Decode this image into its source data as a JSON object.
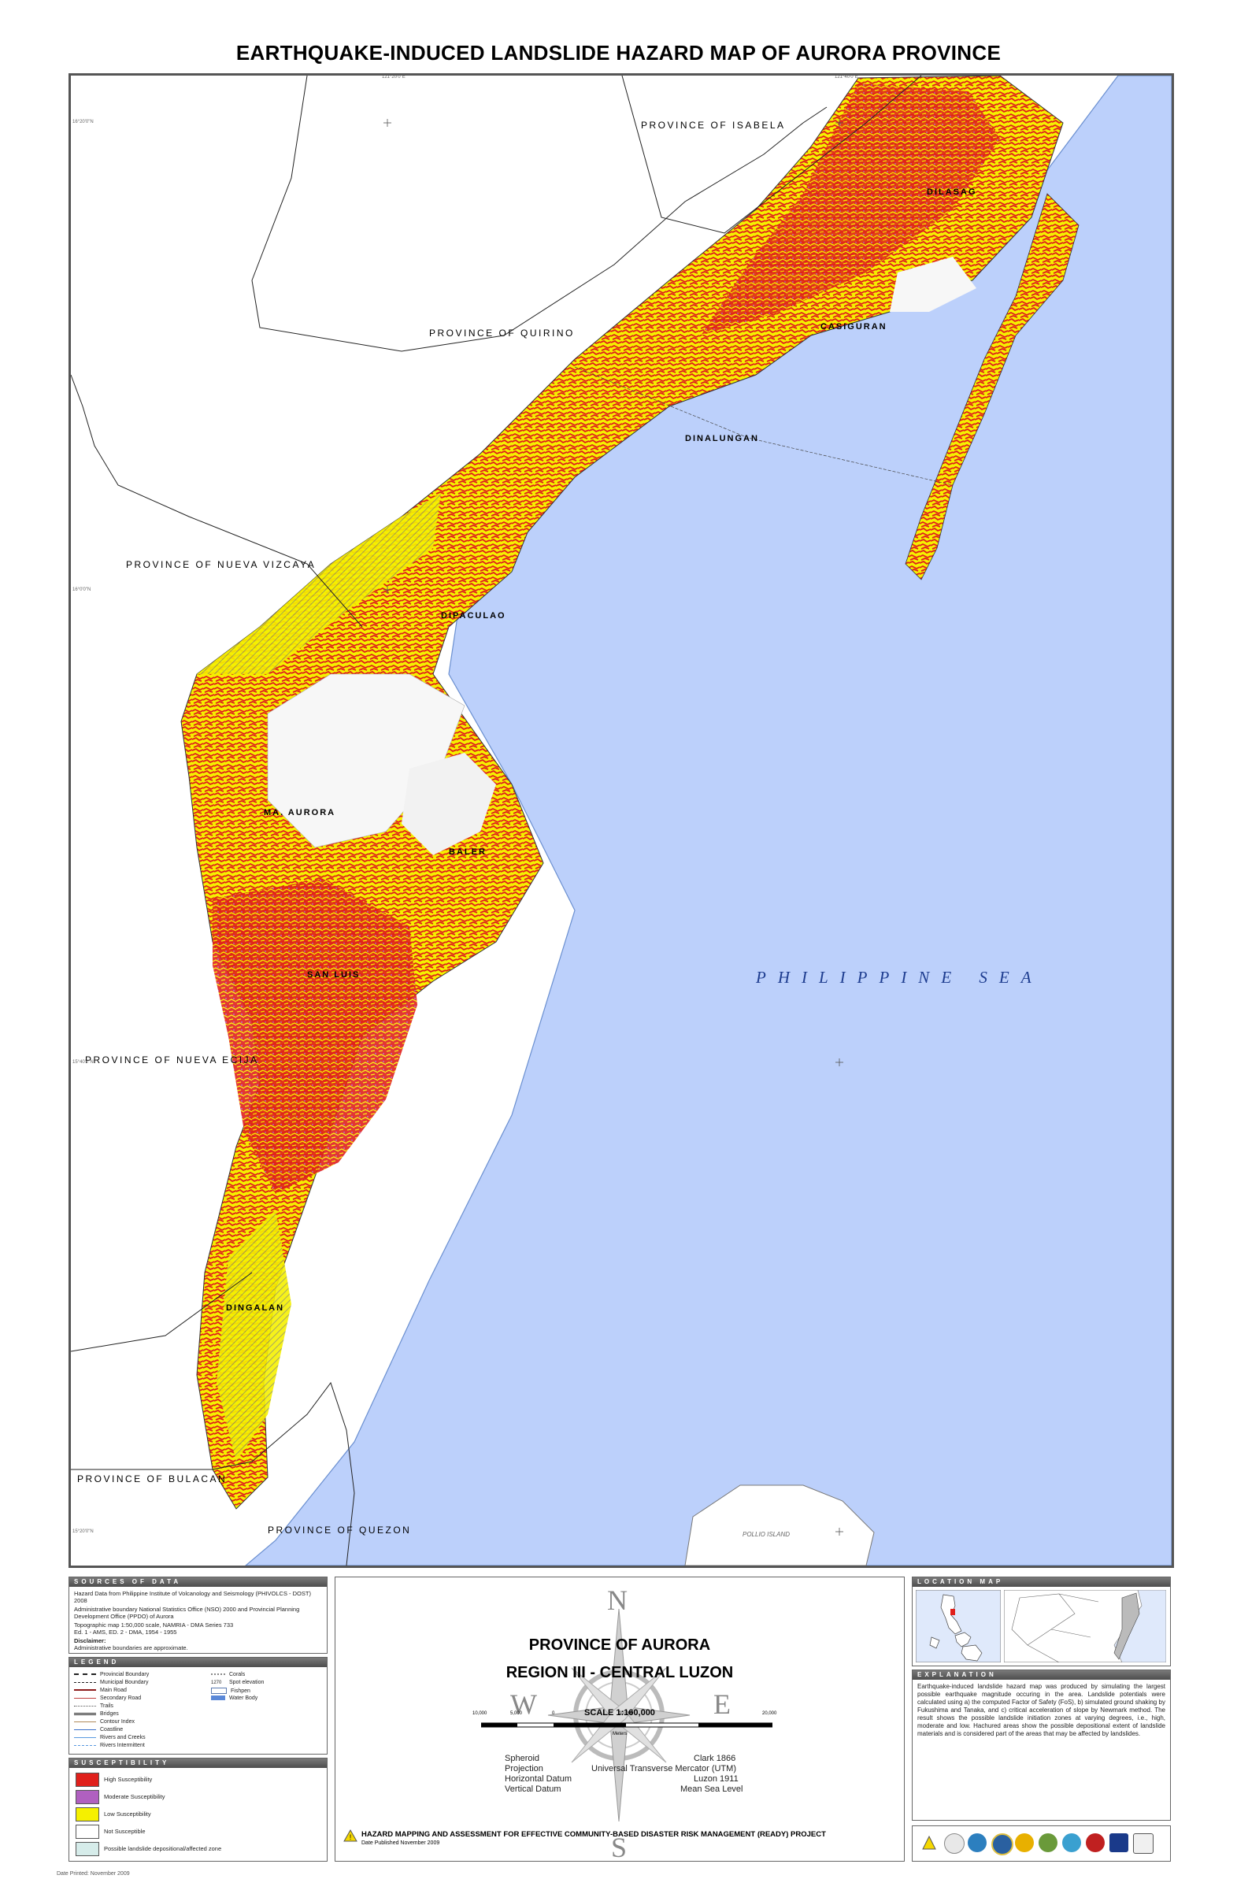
{
  "title": "EARTHQUAKE-INDUCED LANDSLIDE HAZARD MAP OF AURORA PROVINCE",
  "map": {
    "neighbor_labels": {
      "isabela": "PROVINCE OF ISABELA",
      "quirino": "PROVINCE OF QUIRINO",
      "nueva_vizcaya": "PROVINCE OF NUEVA VIZCAYA",
      "nueva_ecija": "PROVINCE OF NUEVA ECIJA",
      "bulacan": "PROVINCE OF BULACAN",
      "quezon": "PROVINCE OF QUEZON"
    },
    "municipalities": {
      "dilasag": "DILASAG",
      "casiguran": "CASIGURAN",
      "dinalungan": "DINALUNGAN",
      "dipaculao": "DIPACULAO",
      "maria_aurora": "MA. AURORA",
      "baler": "BALER",
      "san_luis": "SAN LUIS",
      "dingalan": "DINGALAN"
    },
    "sea_label": "PHILIPPINE SEA",
    "island_label": "POLLIO ISLAND",
    "coord_ticks": {
      "lon1": "121°20'0\"E",
      "lon2": "121°40'0\"E",
      "lat1": "16°20'0\"N",
      "lat2": "16°0'0\"N",
      "lat3": "15°40'0\"N",
      "lat4": "15°20'0\"N"
    },
    "hazard_colors": {
      "high": "#e0201c",
      "moderate": "#b060c0",
      "low": "#f5f000",
      "not": "#ffffff",
      "sea": "#bcd0fb"
    }
  },
  "sources": {
    "heading": "SOURCES OF DATA",
    "lines": [
      "Hazard Data from Philippine Institute of Volcanology and Seismology (PHIVOLCS - DOST) 2008",
      "Administrative boundary National Statistics Office (NSO) 2000 and Provincial Planning Development Office (PPDO) of Aurora",
      "Topographic map 1:50,000 scale, NAMRIA - DMA Series 733",
      "Ed. 1 - AMS, ED. 2 - DMA, 1954 - 1955"
    ],
    "disclaimer_title": "Disclaimer:",
    "disclaimer_text": "Administrative boundaries are approximate."
  },
  "legend": {
    "heading": "LEGEND",
    "left_items": [
      "Provincial Boundary",
      "Municipal Boundary",
      "Main Road",
      "Secondary Road",
      "Trails",
      "Bridges",
      "Contour Index",
      "Coastline",
      "Rivers and Creeks",
      "Rivers Intermittent"
    ],
    "right_items": [
      "Corals",
      "Spot elevation",
      "Fishpen",
      "Water Body"
    ],
    "spot_value": "1270"
  },
  "susceptibility": {
    "heading": "SUSCEPTIBILITY",
    "items": [
      {
        "label": "High Susceptibility",
        "color": "#e0201c"
      },
      {
        "label": "Moderate Susceptibility",
        "color": "#b060c0"
      },
      {
        "label": "Low Susceptibility",
        "color": "#f5f000"
      },
      {
        "label": "Not Susceptible",
        "color": "#ffffff"
      },
      {
        "label": "Possible landslide depositional/affected zone",
        "color": "#d6ecea"
      }
    ]
  },
  "title_block": {
    "province": "PROVINCE OF AURORA",
    "region": "REGION III - CENTRAL LUZON",
    "scale": "SCALE   1:160,000",
    "scale_ticks": [
      "10,000",
      "5,000",
      "0",
      "10,000",
      "20,000"
    ],
    "scale_unit": "Meters",
    "compass": {
      "n": "N",
      "s": "S",
      "e": "E",
      "w": "W"
    },
    "spheroid_label": "Spheroid",
    "spheroid_value": "Clark 1866",
    "projection_label": "Projection",
    "projection_value": "Universal Transverse Mercator (UTM)",
    "hdatum_label": "Horizontal Datum",
    "hdatum_value": "Luzon 1911",
    "vdatum_label": "Vertical Datum",
    "vdatum_value": "Mean Sea Level",
    "project": "HAZARD MAPPING AND ASSESSMENT FOR EFFECTIVE COMMUNITY-BASED DISASTER RISK MANAGEMENT (READY) PROJECT",
    "date_published": "Date Published November 2009"
  },
  "location_map": {
    "heading": "LOCATION MAP"
  },
  "explanation": {
    "heading": "EXPLANATION",
    "text": "Earthquake-induced landslide hazard map was produced by simulating the largest possible earthquake magnitude occuring in the area. Landslide potentials were calculated using a) the computed Factor of Safety (FoS), b) simulated ground shaking by Fukushima and Tanaka, and c) critical acceleration of slope by Newmark method. The result shows the possible landslide initiation zones at varying degrees, i.e., high, moderate and low. Hachured areas show the possible depositional extent of landslide materials and is considered part of the areas that may be affected by landslides."
  },
  "footer": {
    "date_printed": "Date Printed: November 2009"
  }
}
